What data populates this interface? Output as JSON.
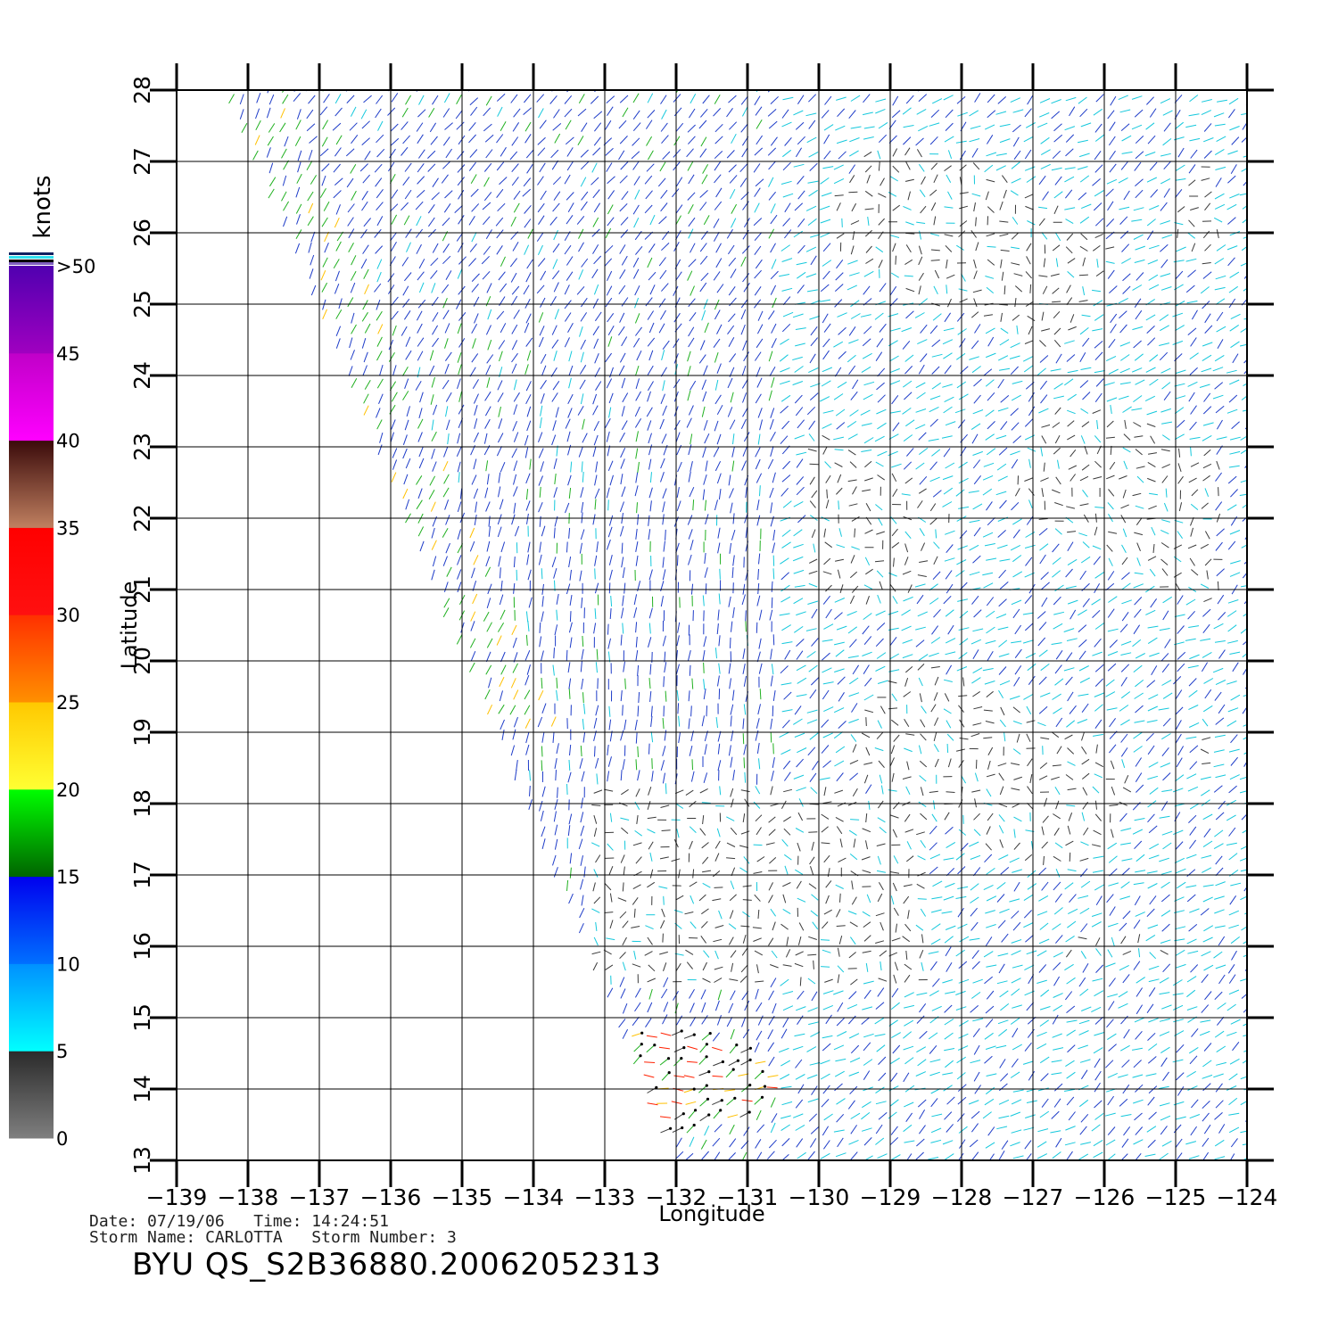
{
  "title": "",
  "x_axis": {
    "label": "Longitude",
    "ticks": [
      -139,
      -138,
      -137,
      -136,
      -135,
      -134,
      -133,
      -132,
      -131,
      -130,
      -129,
      -128,
      -127,
      -126,
      -125,
      -124
    ]
  },
  "y_axis": {
    "label": "Latitude",
    "ticks": [
      13,
      14,
      15,
      16,
      17,
      18,
      19,
      20,
      21,
      22,
      23,
      24,
      25,
      26,
      27,
      28
    ]
  },
  "colorbar": {
    "unit": "knots",
    "labels": [
      "0",
      "5",
      "10",
      "15",
      "20",
      "25",
      "30",
      "35",
      "40",
      "45",
      ">50"
    ],
    "segments": [
      {
        "from": 0,
        "to": 5,
        "colors": [
          "#7f7f7f",
          "#2a2a2a"
        ]
      },
      {
        "from": 5,
        "to": 10,
        "colors": [
          "#00ffff",
          "#0090ff"
        ]
      },
      {
        "from": 10,
        "to": 15,
        "colors": [
          "#0070ff",
          "#0000ee"
        ]
      },
      {
        "from": 15,
        "to": 20,
        "colors": [
          "#006400",
          "#00ff00"
        ]
      },
      {
        "from": 20,
        "to": 25,
        "colors": [
          "#ffff33",
          "#ffc800"
        ]
      },
      {
        "from": 25,
        "to": 30,
        "colors": [
          "#ff9000",
          "#ff3000"
        ]
      },
      {
        "from": 30,
        "to": 35,
        "colors": [
          "#ff1010",
          "#ff0000"
        ]
      },
      {
        "from": 35,
        "to": 40,
        "colors": [
          "#c08060",
          "#3a0a0a"
        ]
      },
      {
        "from": 40,
        "to": 45,
        "colors": [
          "#ff00ff",
          "#c000c8"
        ]
      },
      {
        "from": 45,
        "to": 50,
        "colors": [
          "#a000c0",
          "#5000b0"
        ]
      }
    ]
  },
  "speed_colors": {
    "calm": "#3a3a3a",
    "light": "#14c8dc",
    "moderate": "#1e3cc8",
    "fresh": "#20b020",
    "strong": "#ffc000",
    "gale": "#ff2000"
  },
  "info": {
    "date_label": "Date:",
    "date": "07/19/06",
    "time_label": "Time:",
    "time": "14:24:51",
    "storm_name_label": "Storm Name:",
    "storm_name": "CARLOTTA",
    "storm_number_label": "Storm Number:",
    "storm_number": "3",
    "product": "BYU  QS_S2B36880.20062052313"
  }
}
